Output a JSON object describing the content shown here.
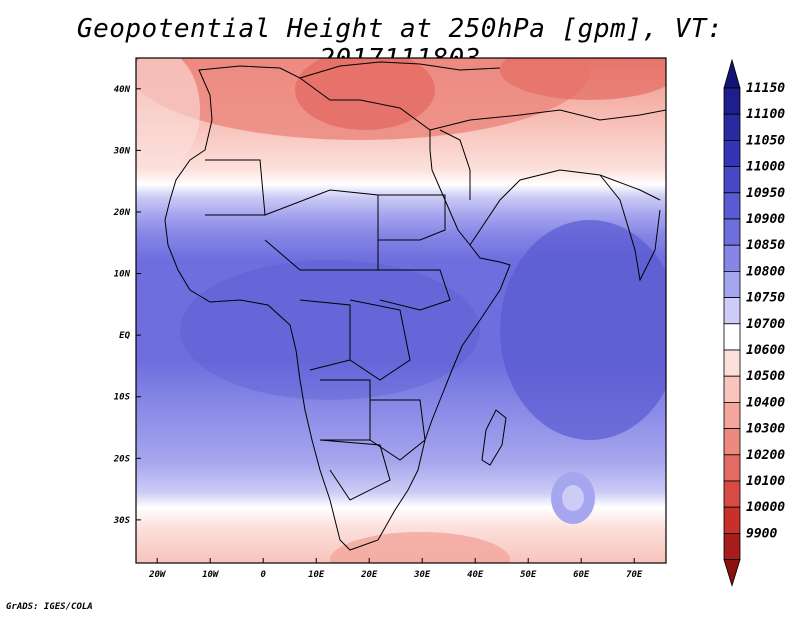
{
  "title": "Geopotential Height at 250hPa [gpm], VT: 2017111803",
  "credit": "GrADS: IGES/COLA",
  "map": {
    "lon_ticks": [
      {
        "value": -20,
        "label": "20W"
      },
      {
        "value": -10,
        "label": "10W"
      },
      {
        "value": 0,
        "label": "0"
      },
      {
        "value": 10,
        "label": "10E"
      },
      {
        "value": 20,
        "label": "20E"
      },
      {
        "value": 30,
        "label": "30E"
      },
      {
        "value": 40,
        "label": "40E"
      },
      {
        "value": 50,
        "label": "50E"
      },
      {
        "value": 60,
        "label": "60E"
      },
      {
        "value": 70,
        "label": "70E"
      }
    ],
    "lat_ticks": [
      {
        "value": 40,
        "label": "40N"
      },
      {
        "value": 30,
        "label": "30N"
      },
      {
        "value": 20,
        "label": "20N"
      },
      {
        "value": 10,
        "label": "10N"
      },
      {
        "value": 0,
        "label": "EQ"
      },
      {
        "value": -10,
        "label": "10S"
      },
      {
        "value": -20,
        "label": "20S"
      },
      {
        "value": -30,
        "label": "30S"
      }
    ]
  },
  "colorbar": {
    "levels": [
      {
        "value": "11150",
        "color": "#1e1e8c"
      },
      {
        "value": "11100",
        "color": "#2a2aa0"
      },
      {
        "value": "11050",
        "color": "#3434b4"
      },
      {
        "value": "11000",
        "color": "#4848c4"
      },
      {
        "value": "10950",
        "color": "#5a5ad2"
      },
      {
        "value": "10900",
        "color": "#6e6ede"
      },
      {
        "value": "10850",
        "color": "#8686e6"
      },
      {
        "value": "10800",
        "color": "#a6a6ee"
      },
      {
        "value": "10750",
        "color": "#ccccf6"
      },
      {
        "value": "10700",
        "color": "#ffffff"
      },
      {
        "value": "10600",
        "color": "#fce0dc"
      },
      {
        "value": "10500",
        "color": "#f8c4bc"
      },
      {
        "value": "10400",
        "color": "#f2a69c"
      },
      {
        "value": "10300",
        "color": "#ec8a80"
      },
      {
        "value": "10200",
        "color": "#e46c64"
      },
      {
        "value": "10100",
        "color": "#d84a44"
      },
      {
        "value": "10000",
        "color": "#c8302c"
      },
      {
        "value": "9900",
        "color": "#a81c1c"
      }
    ],
    "top_arrow_color": "#141478",
    "bottom_arrow_color": "#8c1010"
  }
}
